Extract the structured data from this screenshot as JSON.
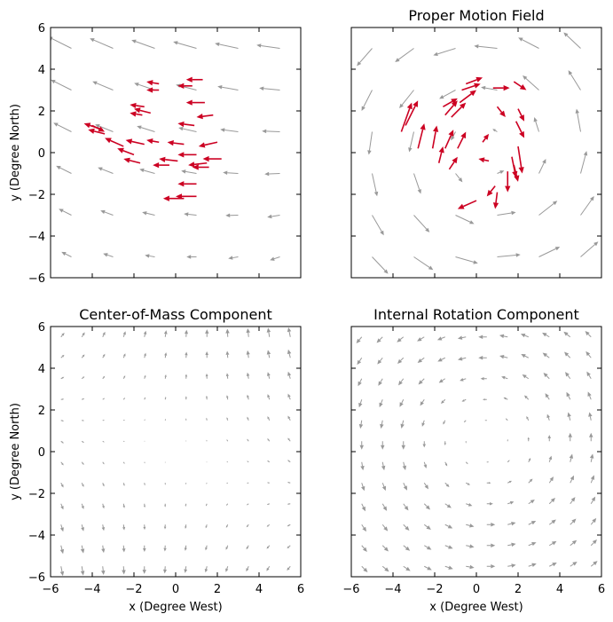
{
  "figure": {
    "background": "#ffffff",
    "frame_color": "#000000",
    "field_arrow_color": "#999999",
    "data_arrow_color": "#cc0022"
  },
  "chart_data": [
    {
      "type": "quiver",
      "title": "",
      "xlabel": "",
      "ylabel": "y (Degree North)",
      "xlim": [
        -6,
        6
      ],
      "ylim": [
        -6,
        6
      ],
      "xticks": [
        "−6",
        "−4",
        "−2",
        "0",
        "2",
        "4",
        "6"
      ],
      "yticks": [
        "−6",
        "−4",
        "−2",
        "0",
        "2",
        "4",
        "6"
      ],
      "show_xticklabels": false,
      "show_yticklabels": true,
      "grid": false,
      "field": {
        "kind": "translation",
        "grid_step": 2,
        "amplitude": 1.0,
        "color": "#999999"
      },
      "vectors": [
        {
          "x": 1.3,
          "y": 3.5,
          "u": -0.8,
          "v": 0.0
        },
        {
          "x": -0.8,
          "y": 3.3,
          "u": -0.6,
          "v": 0.1
        },
        {
          "x": -0.8,
          "y": 3.0,
          "u": -0.6,
          "v": 0.0
        },
        {
          "x": 0.8,
          "y": 3.2,
          "u": -0.7,
          "v": 0.0
        },
        {
          "x": -1.5,
          "y": 2.2,
          "u": -0.7,
          "v": 0.1
        },
        {
          "x": -1.2,
          "y": 1.9,
          "u": -0.8,
          "v": 0.2
        },
        {
          "x": -1.6,
          "y": 1.8,
          "u": -0.6,
          "v": 0.1
        },
        {
          "x": 1.4,
          "y": 2.4,
          "u": -0.9,
          "v": 0.0
        },
        {
          "x": 1.8,
          "y": 1.8,
          "u": -0.8,
          "v": -0.1
        },
        {
          "x": 0.9,
          "y": 1.3,
          "u": -0.8,
          "v": 0.1
        },
        {
          "x": -4.0,
          "y": 1.3,
          "u": 0.6,
          "v": -0.3
        },
        {
          "x": -3.5,
          "y": 1.1,
          "u": -0.9,
          "v": 0.3
        },
        {
          "x": -3.4,
          "y": 0.9,
          "u": -0.8,
          "v": 0.2
        },
        {
          "x": -2.5,
          "y": 0.3,
          "u": -0.9,
          "v": 0.4
        },
        {
          "x": -1.5,
          "y": 0.4,
          "u": -0.9,
          "v": 0.2
        },
        {
          "x": -0.8,
          "y": 0.5,
          "u": -0.6,
          "v": 0.1
        },
        {
          "x": 0.4,
          "y": 0.4,
          "u": -0.8,
          "v": 0.1
        },
        {
          "x": 2.0,
          "y": 0.5,
          "u": -0.9,
          "v": -0.2
        },
        {
          "x": -2.0,
          "y": -0.1,
          "u": -0.8,
          "v": 0.3
        },
        {
          "x": -1.7,
          "y": -0.5,
          "u": -0.8,
          "v": 0.2
        },
        {
          "x": 0.1,
          "y": -0.4,
          "u": -0.9,
          "v": 0.1
        },
        {
          "x": -0.3,
          "y": -0.6,
          "u": -0.8,
          "v": 0.0
        },
        {
          "x": 1.0,
          "y": -0.1,
          "u": -0.9,
          "v": 0.0
        },
        {
          "x": 1.5,
          "y": -0.5,
          "u": -0.9,
          "v": -0.1
        },
        {
          "x": 1.6,
          "y": -0.7,
          "u": -0.8,
          "v": 0.0
        },
        {
          "x": 2.2,
          "y": -0.3,
          "u": -0.9,
          "v": 0.0
        },
        {
          "x": 1.0,
          "y": -1.5,
          "u": -0.9,
          "v": 0.0
        },
        {
          "x": 0.4,
          "y": -2.2,
          "u": -1.0,
          "v": 0.0
        },
        {
          "x": 1.0,
          "y": -2.1,
          "u": -1.0,
          "v": 0.0
        }
      ]
    },
    {
      "type": "quiver",
      "title": "Proper Motion Field",
      "xlabel": "",
      "ylabel": "",
      "xlim": [
        -6,
        6
      ],
      "ylim": [
        -6,
        6
      ],
      "xticks": [
        "−6",
        "−4",
        "−2",
        "0",
        "2",
        "4",
        "6"
      ],
      "yticks": [
        "−6",
        "−4",
        "−2",
        "0",
        "2",
        "4",
        "6"
      ],
      "show_xticklabels": false,
      "show_yticklabels": false,
      "grid": false,
      "field": {
        "kind": "vortex",
        "grid_step": 2,
        "center": [
          0.5,
          0.2
        ],
        "amplitude": 1.4,
        "color": "#999999"
      },
      "vectors": [
        {
          "x": -3.6,
          "y": 1.0,
          "u": 0.5,
          "v": 1.4
        },
        {
          "x": -3.4,
          "y": 1.3,
          "u": 0.6,
          "v": 1.2
        },
        {
          "x": -2.8,
          "y": 0.2,
          "u": 0.3,
          "v": 1.2
        },
        {
          "x": -2.1,
          "y": 0.2,
          "u": 0.2,
          "v": 1.1
        },
        {
          "x": -1.6,
          "y": 2.2,
          "u": 0.7,
          "v": 0.4
        },
        {
          "x": -1.5,
          "y": 1.8,
          "u": 0.6,
          "v": 0.7
        },
        {
          "x": -1.2,
          "y": 1.7,
          "u": 0.7,
          "v": 0.7
        },
        {
          "x": -0.8,
          "y": 2.4,
          "u": 0.8,
          "v": 0.6
        },
        {
          "x": -0.7,
          "y": 3.0,
          "u": 0.9,
          "v": 0.3
        },
        {
          "x": -0.5,
          "y": 3.3,
          "u": 0.8,
          "v": 0.3
        },
        {
          "x": 0.8,
          "y": 3.1,
          "u": 0.8,
          "v": 0.0
        },
        {
          "x": 1.8,
          "y": 3.4,
          "u": 0.6,
          "v": -0.4
        },
        {
          "x": 1.0,
          "y": 2.2,
          "u": 0.4,
          "v": -0.5
        },
        {
          "x": 2.0,
          "y": 2.1,
          "u": 0.3,
          "v": -0.6
        },
        {
          "x": 1.9,
          "y": 1.5,
          "u": 0.4,
          "v": -0.8
        },
        {
          "x": 2.0,
          "y": 0.3,
          "u": 0.2,
          "v": -1.3
        },
        {
          "x": 1.7,
          "y": -0.2,
          "u": 0.2,
          "v": -1.0
        },
        {
          "x": 1.5,
          "y": -0.9,
          "u": 0.0,
          "v": -1.0
        },
        {
          "x": 1.8,
          "y": -0.6,
          "u": 0.2,
          "v": -0.8
        },
        {
          "x": 0.9,
          "y": -1.6,
          "u": -0.4,
          "v": -0.5
        },
        {
          "x": 0.0,
          "y": -2.3,
          "u": -0.9,
          "v": -0.4
        },
        {
          "x": 1.0,
          "y": -1.9,
          "u": -0.1,
          "v": -0.8
        },
        {
          "x": -1.5,
          "y": 0.2,
          "u": 0.4,
          "v": 0.9
        },
        {
          "x": -1.8,
          "y": -0.5,
          "u": 0.2,
          "v": 0.8
        },
        {
          "x": -0.9,
          "y": 0.2,
          "u": 0.4,
          "v": 0.8
        },
        {
          "x": -1.3,
          "y": -0.8,
          "u": 0.4,
          "v": 0.6
        },
        {
          "x": 0.3,
          "y": 0.5,
          "u": 0.3,
          "v": 0.4
        },
        {
          "x": 0.6,
          "y": -0.4,
          "u": -0.5,
          "v": 0.1
        }
      ]
    },
    {
      "type": "quiver",
      "title": "Center-of-Mass Component",
      "xlabel": "x (Degree West)",
      "ylabel": "y (Degree North)",
      "xlim": [
        -6,
        6
      ],
      "ylim": [
        -6,
        6
      ],
      "xticks": [
        "−6",
        "−4",
        "−2",
        "0",
        "2",
        "4",
        "6"
      ],
      "yticks": [
        "−6",
        "−4",
        "−2",
        "0",
        "2",
        "4",
        "6"
      ],
      "show_xticklabels": true,
      "show_yticklabels": true,
      "grid": false,
      "field": {
        "kind": "saddle",
        "grid_step": 1,
        "amplitude": 0.9,
        "color": "#999999"
      },
      "vectors": []
    },
    {
      "type": "quiver",
      "title": "Internal Rotation Component",
      "xlabel": "x (Degree West)",
      "ylabel": "",
      "xlim": [
        -6,
        6
      ],
      "ylim": [
        -6,
        6
      ],
      "xticks": [
        "−6",
        "−4",
        "−2",
        "0",
        "2",
        "4",
        "6"
      ],
      "yticks": [
        "−6",
        "−4",
        "−2",
        "0",
        "2",
        "4",
        "6"
      ],
      "show_xticklabels": true,
      "show_yticklabels": false,
      "grid": false,
      "field": {
        "kind": "vortex",
        "grid_step": 1,
        "center": [
          0.5,
          0.5
        ],
        "amplitude": 0.9,
        "color": "#999999"
      },
      "vectors": []
    }
  ]
}
